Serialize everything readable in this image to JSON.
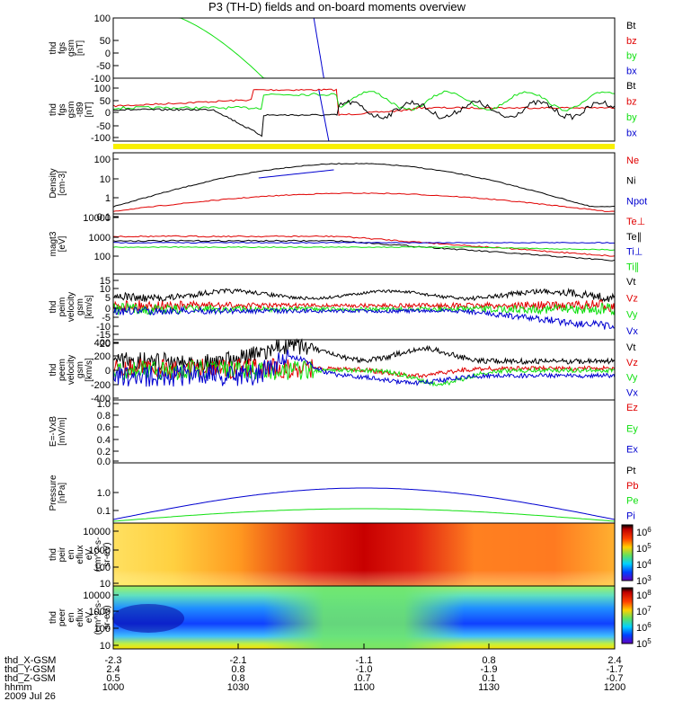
{
  "title": "P3 (TH-D) fields and on-board moments overview",
  "colors": {
    "black": "#000000",
    "red": "#e00000",
    "green": "#10e010",
    "blue": "#0000d0",
    "yellow": "#f8f000"
  },
  "chart_data": {
    "type": "line",
    "panels": [
      {
        "id": "fgs",
        "ylabel": [
          "thd",
          "fgs",
          "gsm",
          "[nT]"
        ],
        "ylim": [
          -100,
          100
        ],
        "yticks": [
          "100",
          "50",
          "0",
          "-50",
          "-100"
        ],
        "legend": [
          {
            "text": "Bt",
            "color": "#000000"
          },
          {
            "text": "bz",
            "color": "#e00000"
          },
          {
            "text": "by",
            "color": "#10e010"
          },
          {
            "text": "bx",
            "color": "#0000d0"
          }
        ]
      },
      {
        "id": "fgs_t89",
        "ylabel": [
          "thd",
          "fgs",
          "gsm",
          "-t89",
          "[nT]"
        ],
        "ylim": [
          -120,
          120
        ],
        "yticks": [
          "100",
          "50",
          "0",
          "-50",
          "-100"
        ],
        "legend": [
          {
            "text": "Bt",
            "color": "#000000"
          },
          {
            "text": "bz",
            "color": "#e00000"
          },
          {
            "text": "by",
            "color": "#10e010"
          },
          {
            "text": "bx",
            "color": "#0000d0"
          }
        ]
      },
      {
        "id": "density",
        "ylabel": [
          "Density",
          "[cm-3]"
        ],
        "ylim": [
          0.02,
          300
        ],
        "yticks": [
          "100",
          "10",
          "1",
          "0.1"
        ],
        "legend": [
          {
            "text": "Ne",
            "color": "#e00000"
          },
          {
            "text": "Ni",
            "color": "#000000"
          },
          {
            "text": "Npot",
            "color": "#0000d0"
          }
        ]
      },
      {
        "id": "temperature",
        "ylabel": [
          "magt3",
          "[eV]"
        ],
        "ylim": [
          20,
          10000
        ],
        "yticks": [
          "10000",
          "1000",
          "100"
        ],
        "legend": [
          {
            "text": "Te⊥",
            "color": "#e00000"
          },
          {
            "text": "Te∥",
            "color": "#000000"
          },
          {
            "text": "Ti⊥",
            "color": "#0000d0"
          },
          {
            "text": "Ti∥",
            "color": "#10e010"
          }
        ]
      },
      {
        "id": "peim",
        "ylabel": [
          "thd",
          "peim",
          "velocity",
          "gsm",
          "[km/s]"
        ],
        "ylim": [
          -20,
          20
        ],
        "yticks": [
          "15",
          "10",
          "5",
          "0",
          "-5",
          "-10",
          "-15",
          "-20"
        ],
        "legend": [
          {
            "text": "Vt",
            "color": "#000000"
          },
          {
            "text": "Vz",
            "color": "#e00000"
          },
          {
            "text": "Vy",
            "color": "#10e010"
          },
          {
            "text": "Vx",
            "color": "#0000d0"
          }
        ]
      },
      {
        "id": "peem",
        "ylabel": [
          "thd",
          "peem",
          "velocity",
          "gsm",
          "[km/s]"
        ],
        "ylim": [
          -400,
          400
        ],
        "yticks": [
          "400",
          "200",
          "0",
          "-200",
          "-400"
        ],
        "legend": [
          {
            "text": "Vt",
            "color": "#000000"
          },
          {
            "text": "Vz",
            "color": "#e00000"
          },
          {
            "text": "Vy",
            "color": "#10e010"
          },
          {
            "text": "Vx",
            "color": "#0000d0"
          }
        ]
      },
      {
        "id": "efield",
        "ylabel": [
          "E=-VxB",
          "[mV/m]"
        ],
        "ylim": [
          0,
          1
        ],
        "yticks": [
          "1.0",
          "0.8",
          "0.6",
          "0.4",
          "0.2",
          "0.0"
        ],
        "legend": [
          {
            "text": "Ez",
            "color": "#e00000"
          },
          {
            "text": "Ey",
            "color": "#10e010"
          },
          {
            "text": "Ex",
            "color": "#0000d0"
          }
        ]
      },
      {
        "id": "pressure",
        "ylabel": [
          "Pressure",
          "[nPa]"
        ],
        "ylim": [
          0.02,
          10
        ],
        "yticks": [
          "1.0",
          "0.1"
        ],
        "legend": [
          {
            "text": "Pt",
            "color": "#000000"
          },
          {
            "text": "Pb",
            "color": "#e00000"
          },
          {
            "text": "Pe",
            "color": "#10e010"
          },
          {
            "text": "Pi",
            "color": "#0000d0"
          }
        ]
      },
      {
        "id": "peir_spec",
        "type": "heatmap",
        "ylabel": [
          "thd",
          "peir",
          "en",
          "eflux",
          "eV",
          "(cm^2-s-",
          "sr-eV)"
        ],
        "yticks": [
          "10000",
          "1000",
          "100",
          "10"
        ],
        "colorbar_ticks": [
          "10^6",
          "10^5",
          "10^4",
          "10^3"
        ]
      },
      {
        "id": "peer_spec",
        "type": "heatmap",
        "ylabel": [
          "thd",
          "peer",
          "en",
          "eflux",
          "eV",
          "(cm^2-s-",
          "sr-eV)"
        ],
        "yticks": [
          "10000",
          "1000",
          "100",
          "10"
        ],
        "colorbar_ticks": [
          "10^8",
          "10^7",
          "10^6",
          "10^5"
        ]
      }
    ],
    "x_axis": {
      "rows": [
        {
          "label": "thd_X-GSM",
          "values": [
            "-2.3",
            "-2.1",
            "-1.1",
            "0.8",
            "2.4"
          ]
        },
        {
          "label": "thd_Y-GSM",
          "values": [
            "2.4",
            "0.8",
            "-1.0",
            "-1.9",
            "-1.7"
          ]
        },
        {
          "label": "thd_Z-GSM",
          "values": [
            "0.5",
            "0.8",
            "0.7",
            "0.1",
            "-0.7"
          ]
        },
        {
          "label": "hhmm",
          "values": [
            "1000",
            "1030",
            "1100",
            "1130",
            "1200"
          ]
        }
      ],
      "date": "2009 Jul 26"
    }
  }
}
